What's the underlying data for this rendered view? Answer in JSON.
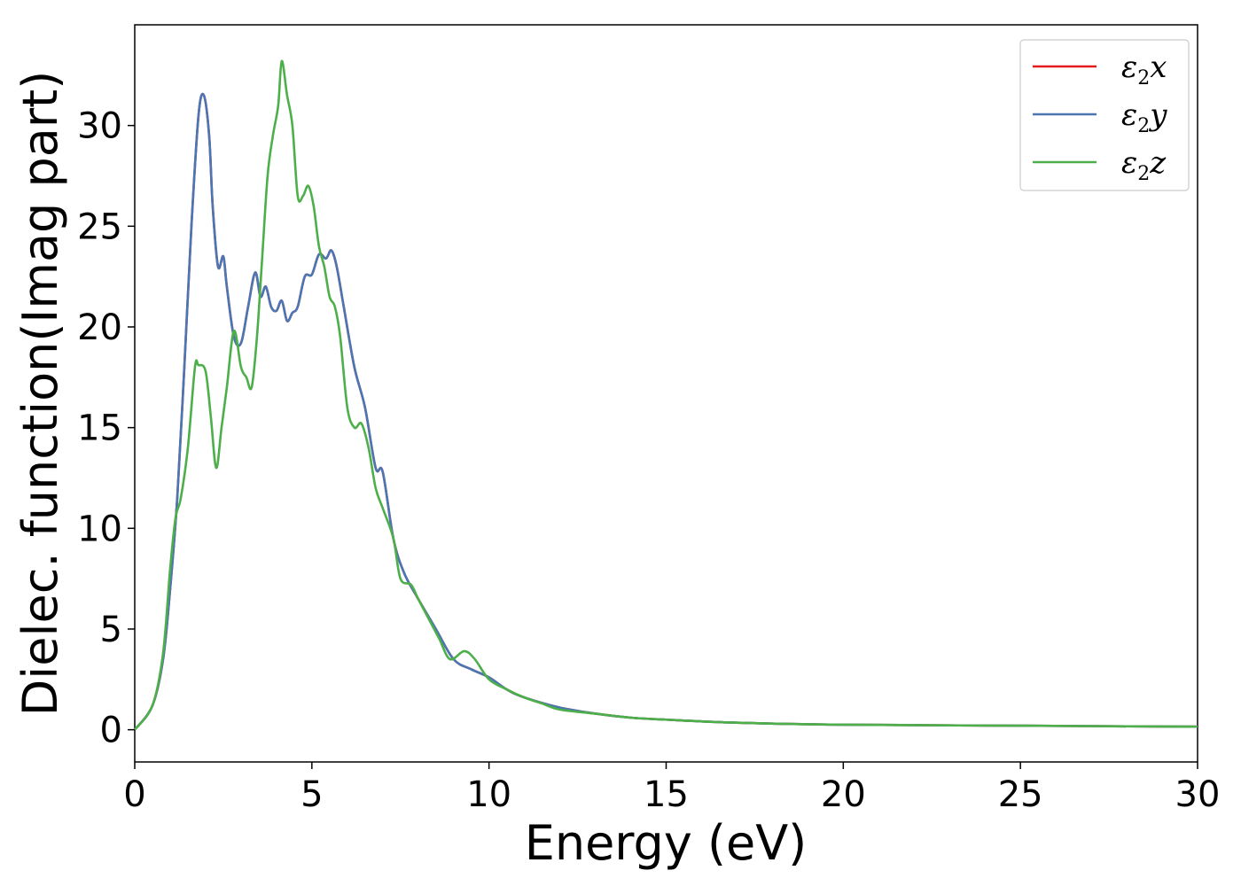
{
  "chart_data": {
    "type": "line",
    "title": "",
    "xlabel": "Energy (eV)",
    "ylabel": "Dielec. function(Imag part)",
    "xlim": [
      0,
      30
    ],
    "ylim": [
      -1.6,
      35
    ],
    "xticks": [
      0,
      5,
      10,
      15,
      20,
      25,
      30
    ],
    "yticks": [
      0,
      5,
      10,
      15,
      20,
      25,
      30
    ],
    "grid": false,
    "legend_position": "top-right",
    "series": [
      {
        "name": "ε₂x",
        "label_base": "ε",
        "label_sub": "2",
        "label_var": "x",
        "color": "#e41a1c",
        "x": [
          0,
          0.5,
          0.8,
          1.0,
          1.2,
          1.4,
          1.6,
          1.8,
          1.95,
          2.1,
          2.2,
          2.35,
          2.5,
          2.6,
          2.8,
          3.0,
          3.2,
          3.4,
          3.55,
          3.7,
          3.85,
          4.0,
          4.15,
          4.3,
          4.45,
          4.6,
          4.8,
          5.0,
          5.2,
          5.4,
          5.55,
          5.7,
          5.9,
          6.2,
          6.5,
          6.8,
          7.0,
          7.3,
          7.6,
          8.0,
          8.5,
          9.0,
          9.5,
          10.0,
          10.5,
          11.0,
          12.0,
          13.0,
          14.0,
          15.0,
          17.0,
          20.0,
          25.0,
          30.0
        ],
        "values": [
          0.0,
          1.2,
          3.5,
          7.0,
          11.5,
          18.0,
          25.0,
          30.5,
          31.5,
          29.5,
          26.0,
          23.0,
          23.5,
          22.0,
          19.5,
          19.2,
          21.0,
          22.7,
          21.5,
          22.0,
          21.0,
          20.8,
          21.3,
          20.3,
          20.7,
          21.0,
          22.5,
          22.6,
          23.6,
          23.4,
          23.8,
          23.0,
          21.0,
          18.0,
          16.0,
          13.0,
          12.8,
          9.5,
          7.8,
          6.5,
          5.0,
          3.5,
          3.0,
          2.6,
          2.0,
          1.6,
          1.1,
          0.8,
          0.6,
          0.5,
          0.35,
          0.25,
          0.2,
          0.15
        ]
      },
      {
        "name": "ε₂y",
        "label_base": "ε",
        "label_sub": "2",
        "label_var": "y",
        "color": "#4a77b4",
        "x": [
          0,
          0.5,
          0.8,
          1.0,
          1.2,
          1.4,
          1.6,
          1.8,
          1.95,
          2.1,
          2.2,
          2.35,
          2.5,
          2.6,
          2.8,
          3.0,
          3.2,
          3.4,
          3.55,
          3.7,
          3.85,
          4.0,
          4.15,
          4.3,
          4.45,
          4.6,
          4.8,
          5.0,
          5.2,
          5.4,
          5.55,
          5.7,
          5.9,
          6.2,
          6.5,
          6.8,
          7.0,
          7.3,
          7.6,
          8.0,
          8.5,
          9.0,
          9.5,
          10.0,
          10.5,
          11.0,
          12.0,
          13.0,
          14.0,
          15.0,
          17.0,
          20.0,
          25.0,
          30.0
        ],
        "values": [
          0.0,
          1.2,
          3.5,
          7.0,
          11.5,
          18.0,
          25.0,
          30.5,
          31.5,
          29.5,
          26.0,
          23.0,
          23.5,
          22.0,
          19.5,
          19.2,
          21.0,
          22.7,
          21.5,
          22.0,
          21.0,
          20.8,
          21.3,
          20.3,
          20.7,
          21.0,
          22.5,
          22.6,
          23.6,
          23.4,
          23.8,
          23.0,
          21.0,
          18.0,
          16.0,
          13.0,
          12.8,
          9.5,
          7.8,
          6.5,
          5.0,
          3.5,
          3.0,
          2.6,
          2.0,
          1.6,
          1.1,
          0.8,
          0.6,
          0.5,
          0.35,
          0.25,
          0.2,
          0.15
        ]
      },
      {
        "name": "ε₂z",
        "label_base": "ε",
        "label_sub": "2",
        "label_var": "z",
        "color": "#4daf4a",
        "x": [
          0,
          0.5,
          0.8,
          1.0,
          1.15,
          1.3,
          1.5,
          1.7,
          1.8,
          2.0,
          2.15,
          2.3,
          2.45,
          2.6,
          2.8,
          3.0,
          3.15,
          3.3,
          3.45,
          3.6,
          3.75,
          3.9,
          4.05,
          4.15,
          4.3,
          4.45,
          4.6,
          4.75,
          4.9,
          5.05,
          5.2,
          5.35,
          5.5,
          5.65,
          5.8,
          6.0,
          6.2,
          6.4,
          6.6,
          6.8,
          7.0,
          7.3,
          7.5,
          7.8,
          8.0,
          8.3,
          8.6,
          8.9,
          9.3,
          9.6,
          10.0,
          10.5,
          11.0,
          11.5,
          12.0,
          13.0,
          14.0,
          15.0,
          17.0,
          20.0,
          25.0,
          30.0
        ],
        "values": [
          0.0,
          1.2,
          3.8,
          8.0,
          10.5,
          11.5,
          14.0,
          18.0,
          18.1,
          17.8,
          15.5,
          13.0,
          15.0,
          17.0,
          19.8,
          18.0,
          17.5,
          17.0,
          19.5,
          23.5,
          27.5,
          29.5,
          31.0,
          33.2,
          31.5,
          30.0,
          26.5,
          26.5,
          27.0,
          26.0,
          24.0,
          23.0,
          21.5,
          21.0,
          19.5,
          16.0,
          15.0,
          15.2,
          14.0,
          12.0,
          11.0,
          9.5,
          7.5,
          7.2,
          6.5,
          5.5,
          4.5,
          3.5,
          3.9,
          3.5,
          2.5,
          2.0,
          1.6,
          1.3,
          1.0,
          0.8,
          0.6,
          0.5,
          0.35,
          0.25,
          0.2,
          0.15
        ]
      }
    ]
  }
}
